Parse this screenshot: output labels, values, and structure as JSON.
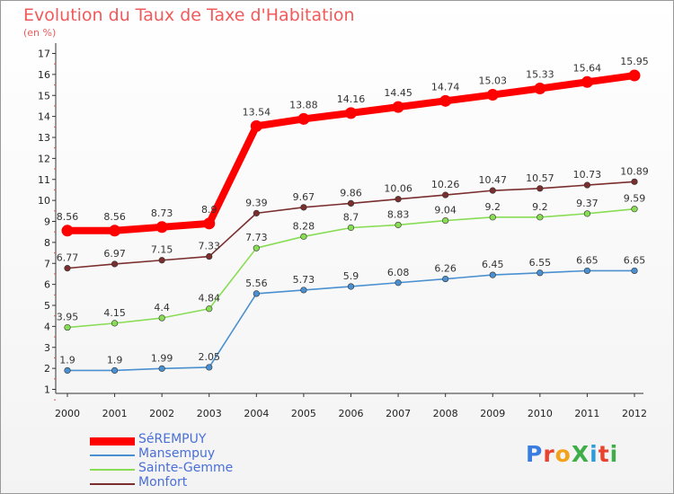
{
  "chart_data": {
    "type": "line",
    "title": "Evolution du Taux de Taxe d'Habitation",
    "subtitle": "(en %)",
    "x": [
      "2000",
      "2001",
      "2002",
      "2003",
      "2004",
      "2005",
      "2006",
      "2007",
      "2008",
      "2009",
      "2010",
      "2011",
      "2012"
    ],
    "ylim": [
      0,
      17
    ],
    "yticks": [
      1,
      2,
      3,
      4,
      5,
      6,
      7,
      8,
      9,
      10,
      11,
      12,
      13,
      14,
      15,
      16,
      17
    ],
    "grid": false,
    "legend_position": "bottom-left",
    "series": [
      {
        "name": "SéREMPUY",
        "color": "#ff0000",
        "values": [
          8.56,
          8.56,
          8.73,
          8.9,
          13.54,
          13.88,
          14.16,
          14.45,
          14.74,
          15.03,
          15.33,
          15.64,
          15.95
        ],
        "labels": [
          "8.56",
          "8.56",
          "8.73",
          "8.9",
          "13.54",
          "13.88",
          "14.16",
          "14.45",
          "14.74",
          "15.03",
          "15.33",
          "15.64",
          "15.95"
        ]
      },
      {
        "name": "Mansempuy",
        "color": "#4a90d0",
        "values": [
          1.9,
          1.9,
          1.99,
          2.05,
          5.56,
          5.73,
          5.9,
          6.08,
          6.26,
          6.45,
          6.55,
          6.65,
          6.65
        ],
        "labels": [
          "1.9",
          "1.9",
          "1.99",
          "2.05",
          "5.56",
          "5.73",
          "5.9",
          "6.08",
          "6.26",
          "6.45",
          "6.55",
          "6.65",
          "6.65"
        ]
      },
      {
        "name": "Sainte-Gemme",
        "color": "#88dd55",
        "values": [
          3.95,
          4.15,
          4.4,
          4.84,
          7.73,
          8.28,
          8.7,
          8.83,
          9.04,
          9.2,
          9.2,
          9.37,
          9.59
        ],
        "labels": [
          "3.95",
          "4.15",
          "4.4",
          "4.84",
          "7.73",
          "8.28",
          "8.7",
          "8.83",
          "9.04",
          "9.2",
          "9.2",
          "9.37",
          "9.59"
        ]
      },
      {
        "name": "Monfort",
        "color": "#7a2e2e",
        "values": [
          6.77,
          6.97,
          7.15,
          7.33,
          9.39,
          9.67,
          9.86,
          10.06,
          10.26,
          10.47,
          10.57,
          10.73,
          10.89
        ],
        "labels": [
          "6.77",
          "6.97",
          "7.15",
          "7.33",
          "9.39",
          "9.67",
          "9.86",
          "10.06",
          "10.26",
          "10.47",
          "10.57",
          "10.73",
          "10.89"
        ]
      }
    ]
  },
  "logo": {
    "text": "ProXiti",
    "colors": [
      "#3a7de0",
      "#e8432e",
      "#f3a21c",
      "#3fae49",
      "#2f9cd8",
      "#e8432e",
      "#3fae49"
    ]
  }
}
